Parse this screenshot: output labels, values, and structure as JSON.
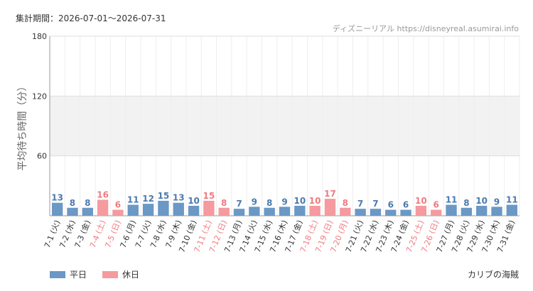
{
  "header": {
    "period_label": "集計期間：2026-07-01〜2026-07-31",
    "site_credit": "ディズニーリアル https://disneyreal.asumirai.info"
  },
  "colors": {
    "weekday": "#6b98c5",
    "holiday": "#f59a9e",
    "weekday_label": "#4a7ab0",
    "holiday_label": "#f07a80",
    "tick_label": "#333333",
    "grid": "#dddddd",
    "band": "#f2f2f2"
  },
  "legend": {
    "weekday_label": "平日",
    "holiday_label": "休日"
  },
  "footer": {
    "attraction": "カリブの海賊"
  },
  "chart_data": {
    "type": "bar",
    "ylabel": "平均待ち時間（分）",
    "ylim": [
      0,
      180
    ],
    "yticks": [
      60,
      120,
      180
    ],
    "shaded_band": [
      60,
      120
    ],
    "grid": true,
    "legend_position": "bottom-left",
    "categories": [
      "7-1 (火)",
      "7-2 (水)",
      "7-3 (金)",
      "7-4 (土)",
      "7-5 (日)",
      "7-6 (月)",
      "7-7 (火)",
      "7-8 (水)",
      "7-9 (木)",
      "7-10 (金)",
      "7-11 (土)",
      "7-12 (日)",
      "7-13 (月)",
      "7-14 (火)",
      "7-15 (水)",
      "7-16 (木)",
      "7-17 (金)",
      "7-18 (土)",
      "7-19 (日)",
      "7-20 (月)",
      "7-21 (火)",
      "7-22 (水)",
      "7-23 (木)",
      "7-24 (金)",
      "7-25 (土)",
      "7-26 (日)",
      "7-27 (月)",
      "7-28 (火)",
      "7-29 (水)",
      "7-30 (木)",
      "7-31 (金)"
    ],
    "values": [
      13,
      8,
      8,
      16,
      6,
      11,
      12,
      15,
      13,
      10,
      15,
      8,
      7,
      9,
      8,
      9,
      10,
      10,
      17,
      8,
      7,
      7,
      6,
      6,
      10,
      6,
      11,
      8,
      10,
      9,
      11
    ],
    "day_type": [
      "weekday",
      "weekday",
      "weekday",
      "holiday",
      "holiday",
      "weekday",
      "weekday",
      "weekday",
      "weekday",
      "weekday",
      "holiday",
      "holiday",
      "weekday",
      "weekday",
      "weekday",
      "weekday",
      "weekday",
      "holiday",
      "holiday",
      "holiday",
      "weekday",
      "weekday",
      "weekday",
      "weekday",
      "holiday",
      "holiday",
      "weekday",
      "weekday",
      "weekday",
      "weekday",
      "weekday"
    ]
  }
}
